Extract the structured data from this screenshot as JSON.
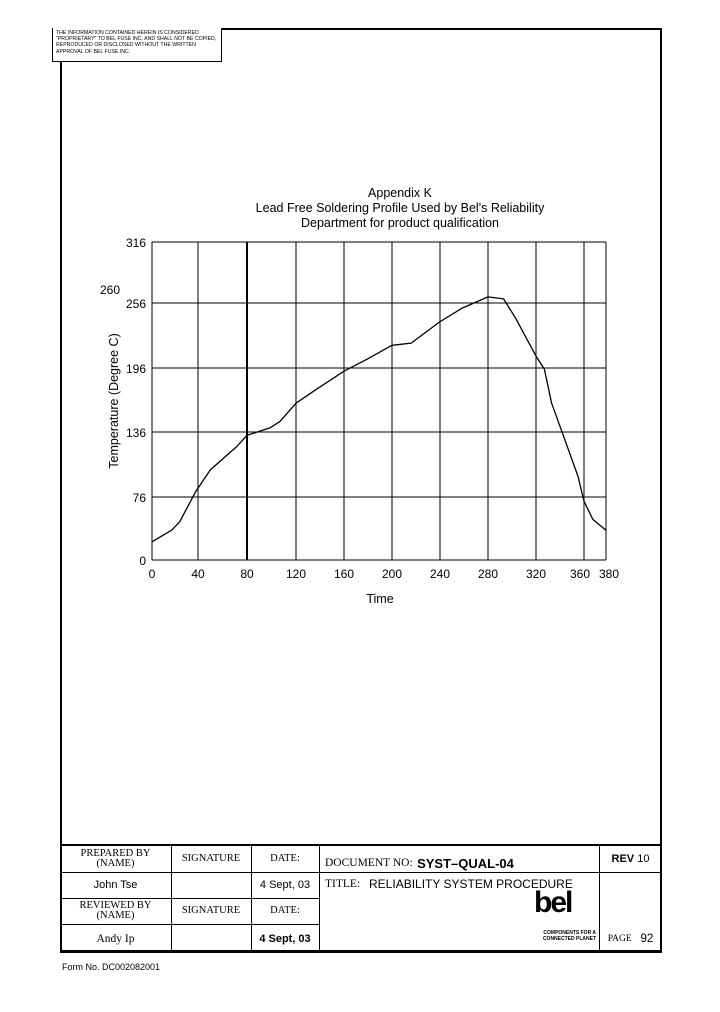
{
  "notice": "The information contained herein is considered \"proprietary\" to Bel Fuse Inc. and shall not be copied, reproduced or disclosed without the written approval of Bel Fuse Inc.",
  "chart_data": {
    "type": "line",
    "title": "Appendix K",
    "subtitle_lines": [
      "Lead Free Soldering Profile Used by Bel's Reliability",
      "Department for product qualification"
    ],
    "xlabel": "Time",
    "ylabel": "Temperature (Degree C)",
    "xticks": [
      0,
      40,
      80,
      120,
      160,
      200,
      240,
      280,
      320,
      360,
      380
    ],
    "yticks": [
      0,
      76,
      136,
      196,
      256,
      316
    ],
    "annotation": "260",
    "highlight_x": 80,
    "xlim": [
      0,
      380
    ],
    "ylim": [
      0,
      316
    ],
    "grid": true,
    "x": [
      0,
      17,
      24,
      38,
      50,
      72,
      80,
      99,
      107,
      120,
      137,
      160,
      179,
      200,
      216,
      239,
      258,
      280,
      293,
      303,
      320,
      327,
      333,
      343,
      355,
      360,
      368,
      380
    ],
    "y": [
      22,
      36,
      46,
      81,
      101,
      123,
      133,
      140,
      146,
      163,
      176,
      193,
      204,
      217,
      219,
      238,
      251,
      262,
      260,
      242,
      207,
      195,
      163,
      132,
      95,
      71,
      49,
      36
    ]
  },
  "footer": {
    "prepared_by": "PREPARED BY",
    "name_label": "(NAME)",
    "signature_label": "SIGNATURE",
    "date_label": "DATE:",
    "prepared_name": "John Tse",
    "prepared_date": "4 Sept, 03",
    "reviewed_by": "REVIEWED BY",
    "reviewed_name": "Andy Ip",
    "reviewed_date": "4 Sept, 03",
    "doc_no_label": "DOCUMENT NO:",
    "doc_no": "SYST–QUAL-04",
    "rev_label": "REV",
    "rev": "10",
    "title_label": "TITLE:",
    "title": "RELIABILITY SYSTEM PROCEDURE",
    "page_label": "PAGE",
    "page": "92",
    "logo": "bel",
    "logo_tagline": "COMPONENTS FOR A CONNECTED PLANET"
  },
  "form_no": "Form No. DC002082001"
}
